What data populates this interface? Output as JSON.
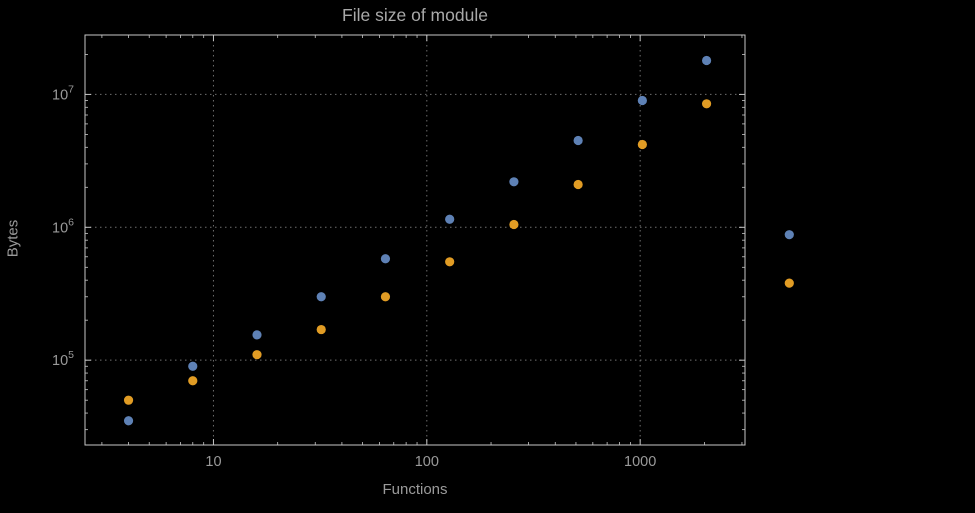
{
  "chart_data": {
    "type": "scatter",
    "title": "File size of module",
    "xlabel": "Functions",
    "ylabel": "Bytes",
    "x_scale": "log",
    "y_scale": "log",
    "xlim": [
      2.5,
      3100
    ],
    "ylim": [
      23000,
      28000000
    ],
    "grid": "dotted gridlines at powers of 10, frame ticks on all sides",
    "legend_position": "none",
    "x_tick_labels": [
      "10",
      "100",
      "1000"
    ],
    "x_tick_values": [
      10,
      100,
      1000
    ],
    "y_tick_labels": [
      "10^5",
      "10^6",
      "10^7"
    ],
    "y_tick_values": [
      100000,
      1000000,
      10000000
    ],
    "series": [
      {
        "name": "series-1-blue",
        "color": "#5e81b5",
        "points": [
          [
            4,
            35000
          ],
          [
            8,
            90000
          ],
          [
            16,
            155000
          ],
          [
            32,
            300000
          ],
          [
            64,
            580000
          ],
          [
            128,
            1150000
          ],
          [
            256,
            2200000
          ],
          [
            512,
            4500000
          ],
          [
            1024,
            9000000
          ],
          [
            2048,
            18000000
          ],
          [
            5000,
            880000
          ]
        ]
      },
      {
        "name": "series-2-orange",
        "color": "#e19c24",
        "points": [
          [
            4,
            50000
          ],
          [
            8,
            70000
          ],
          [
            16,
            110000
          ],
          [
            32,
            170000
          ],
          [
            64,
            300000
          ],
          [
            128,
            550000
          ],
          [
            256,
            1050000
          ],
          [
            512,
            2100000
          ],
          [
            1024,
            4200000
          ],
          [
            2048,
            8500000
          ],
          [
            5000,
            380000
          ]
        ]
      }
    ]
  },
  "colors": {
    "background": "#000000",
    "frame": "#c8c8c8",
    "grid": "#6f6f6f",
    "tick_label": "#9a9a9a",
    "title": "#a9a9a9",
    "axis_label": "#9a9a9a"
  }
}
